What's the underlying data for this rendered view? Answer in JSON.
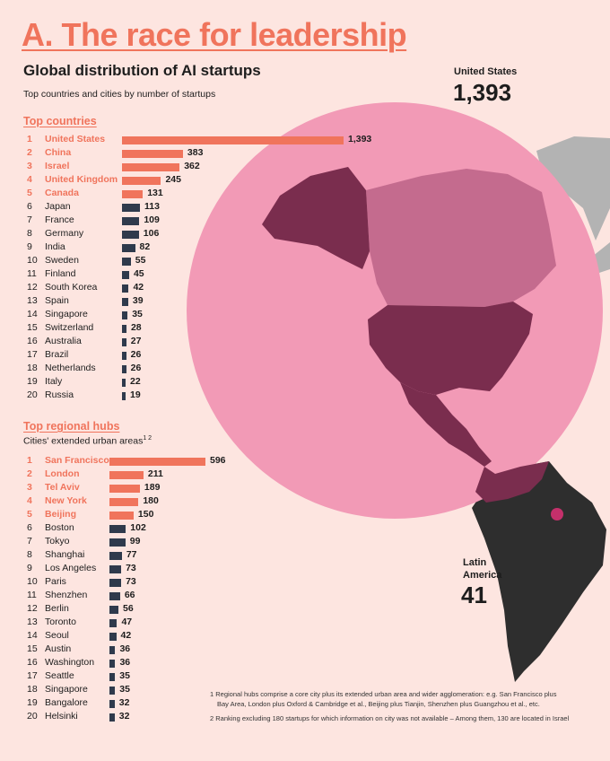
{
  "header": {
    "title": "A.  The race for leadership",
    "subtitle": "Global distribution of AI startups",
    "description": "Top countries and cities by number of startups"
  },
  "countries_section": {
    "heading": "Top countries"
  },
  "hubs_section": {
    "heading": "Top regional hubs",
    "subheading": "Cities' extended urban areas",
    "subheading_sup": "1 2"
  },
  "callouts": {
    "us_label": "United States",
    "us_value": "1,393",
    "latam_label_1": "Latin",
    "latam_label_2": "America",
    "latam_value": "41"
  },
  "footnotes": {
    "fn1_line1": "1  Regional hubs comprise a core city plus its extended urban area and wider agglomeration: e.g. San Francisco plus",
    "fn1_line2": "Bay Area, London plus Oxford & Cambridge et al., Beijing plus Tianjin, Shenzhen plus Guangzhou et al., etc.",
    "fn2": "2  Ranking excluding 180 startups for which information on city was not available – Among them, 130 are located in Israel"
  },
  "colors": {
    "accent": "#f0745c",
    "dark_bar": "#2f3a4c",
    "circle": "#f29ab6",
    "highlight": "#7a2d4e",
    "land_dim": "#c46b8e",
    "land_dark": "#2e2e2e",
    "land_grey": "#b3b3b3"
  },
  "chart_data": [
    {
      "type": "bar",
      "orientation": "horizontal",
      "title": "Top countries",
      "top_highlighted": 5,
      "categories": [
        "United States",
        "China",
        "Israel",
        "United Kingdom",
        "Canada",
        "Japan",
        "France",
        "Germany",
        "India",
        "Sweden",
        "Finland",
        "South Korea",
        "Spain",
        "Singapore",
        "Switzerland",
        "Australia",
        "Brazil",
        "Netherlands",
        "Italy",
        "Russia"
      ],
      "values": [
        1393,
        383,
        362,
        245,
        131,
        113,
        109,
        106,
        82,
        55,
        45,
        42,
        39,
        35,
        28,
        27,
        26,
        26,
        22,
        19
      ],
      "value_labels": [
        "1,393",
        "383",
        "362",
        "245",
        "131",
        "113",
        "109",
        "106",
        "82",
        "55",
        "45",
        "42",
        "39",
        "35",
        "28",
        "27",
        "26",
        "26",
        "22",
        "19"
      ]
    },
    {
      "type": "bar",
      "orientation": "horizontal",
      "title": "Top regional hubs",
      "top_highlighted": 5,
      "categories": [
        "San Francisco",
        "London",
        "Tel Aviv",
        "New York",
        "Beijing",
        "Boston",
        "Tokyo",
        "Shanghai",
        "Los Angeles",
        "Paris",
        "Shenzhen",
        "Berlin",
        "Toronto",
        "Seoul",
        "Austin",
        "Washington",
        "Seattle",
        "Singapore",
        "Bangalore",
        "Helsinki"
      ],
      "values": [
        596,
        211,
        189,
        180,
        150,
        102,
        99,
        77,
        73,
        73,
        66,
        56,
        47,
        42,
        36,
        36,
        35,
        35,
        32,
        32
      ],
      "value_labels": [
        "596",
        "211",
        "189",
        "180",
        "150",
        "102",
        "99",
        "77",
        "73",
        "73",
        "66",
        "56",
        "47",
        "42",
        "36",
        "36",
        "35",
        "35",
        "32",
        "32"
      ]
    }
  ]
}
